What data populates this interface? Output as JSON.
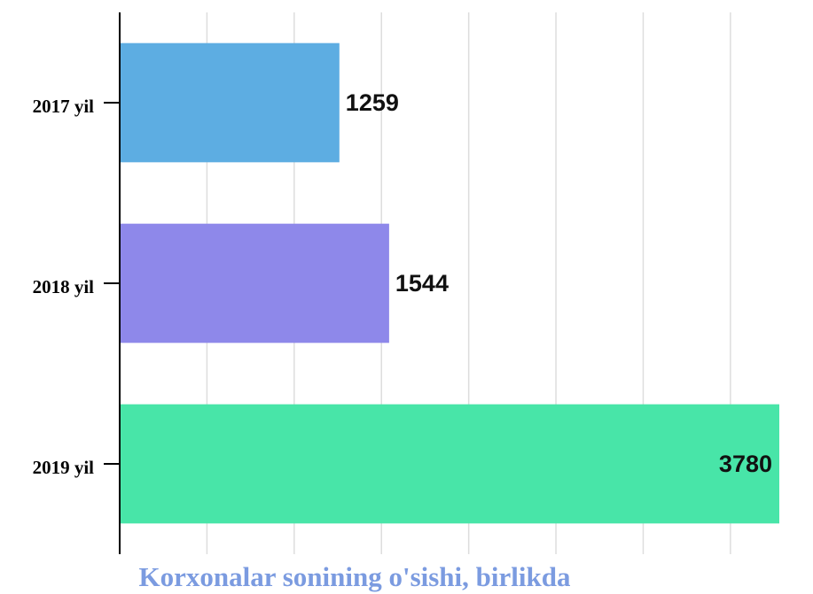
{
  "chart_data": {
    "type": "bar",
    "orientation": "horizontal",
    "title": "Korxonalar sonining o'sishi, birlikda",
    "categories": [
      "2017 yil",
      "2018 yil",
      "2019 yil"
    ],
    "values": [
      1259,
      1544,
      3780
    ],
    "colors": [
      "#5dade2",
      "#8e88ea",
      "#48e5a8"
    ],
    "xlim": [
      0,
      3780
    ],
    "xticks": [
      0,
      500,
      1000,
      1500,
      2000,
      2500,
      3000,
      3500
    ],
    "grid": true
  }
}
